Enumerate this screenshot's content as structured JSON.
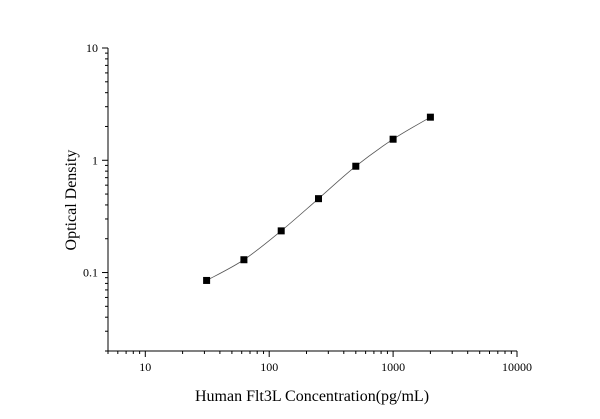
{
  "chart_data": {
    "type": "scatter",
    "title": "",
    "xlabel": "Human Flt3L Concentration(pg/mL)",
    "ylabel": "Optical Density",
    "x_scale": "log",
    "y_scale": "log",
    "xlim": [
      5,
      10000
    ],
    "ylim": [
      0.02,
      10
    ],
    "x_ticks": [
      10,
      100,
      1000,
      10000
    ],
    "x_tick_labels": [
      "10",
      "100",
      "1000",
      "10000"
    ],
    "y_ticks": [
      0.1,
      1,
      10
    ],
    "y_tick_labels": [
      "0.1",
      "1",
      "10"
    ],
    "grid": false,
    "legend": "none",
    "fit_line": true,
    "series": [
      {
        "x": [
          31.25,
          62.5,
          125,
          250,
          500,
          1000,
          2000
        ],
        "y": [
          0.085,
          0.13,
          0.235,
          0.455,
          0.885,
          1.54,
          2.42
        ]
      }
    ],
    "colors": {
      "marker": "#000000",
      "curve": "#555555",
      "axis": "#000000"
    }
  }
}
